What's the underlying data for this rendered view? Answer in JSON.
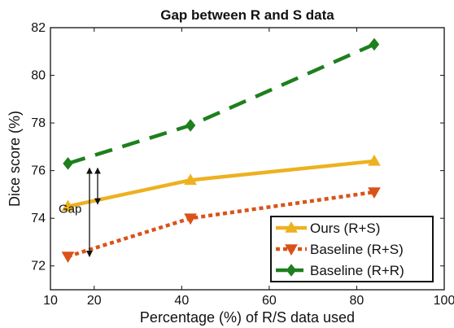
{
  "chart_data": {
    "type": "line",
    "title": "Gap between R and S data",
    "xlabel": "Percentage (%) of R/S data used",
    "ylabel": "Dice score (%)",
    "xlim": [
      10,
      100
    ],
    "ylim": [
      71,
      82
    ],
    "xticks": [
      "10",
      "20",
      "40",
      "60",
      "80",
      "100"
    ],
    "yticks": [
      "72",
      "74",
      "76",
      "78",
      "80",
      "82"
    ],
    "x": [
      14,
      42,
      84
    ],
    "series": [
      {
        "name": "Ours (R+S)",
        "values": [
          74.5,
          75.6,
          76.4
        ],
        "color": "#EDB120",
        "line_style": "solid",
        "marker": "triangle-up"
      },
      {
        "name": "Baseline (R+S)",
        "values": [
          72.4,
          74.0,
          75.1
        ],
        "color": "#D95319",
        "line_style": "dotted",
        "marker": "triangle-down"
      },
      {
        "name": "Baseline (R+R)",
        "values": [
          76.3,
          77.9,
          81.3
        ],
        "color": "#1E7F1E",
        "line_style": "dashed",
        "marker": "diamond"
      }
    ],
    "legend_position": "bottom-right",
    "grid": false,
    "annotation": {
      "text": "Gap"
    }
  }
}
